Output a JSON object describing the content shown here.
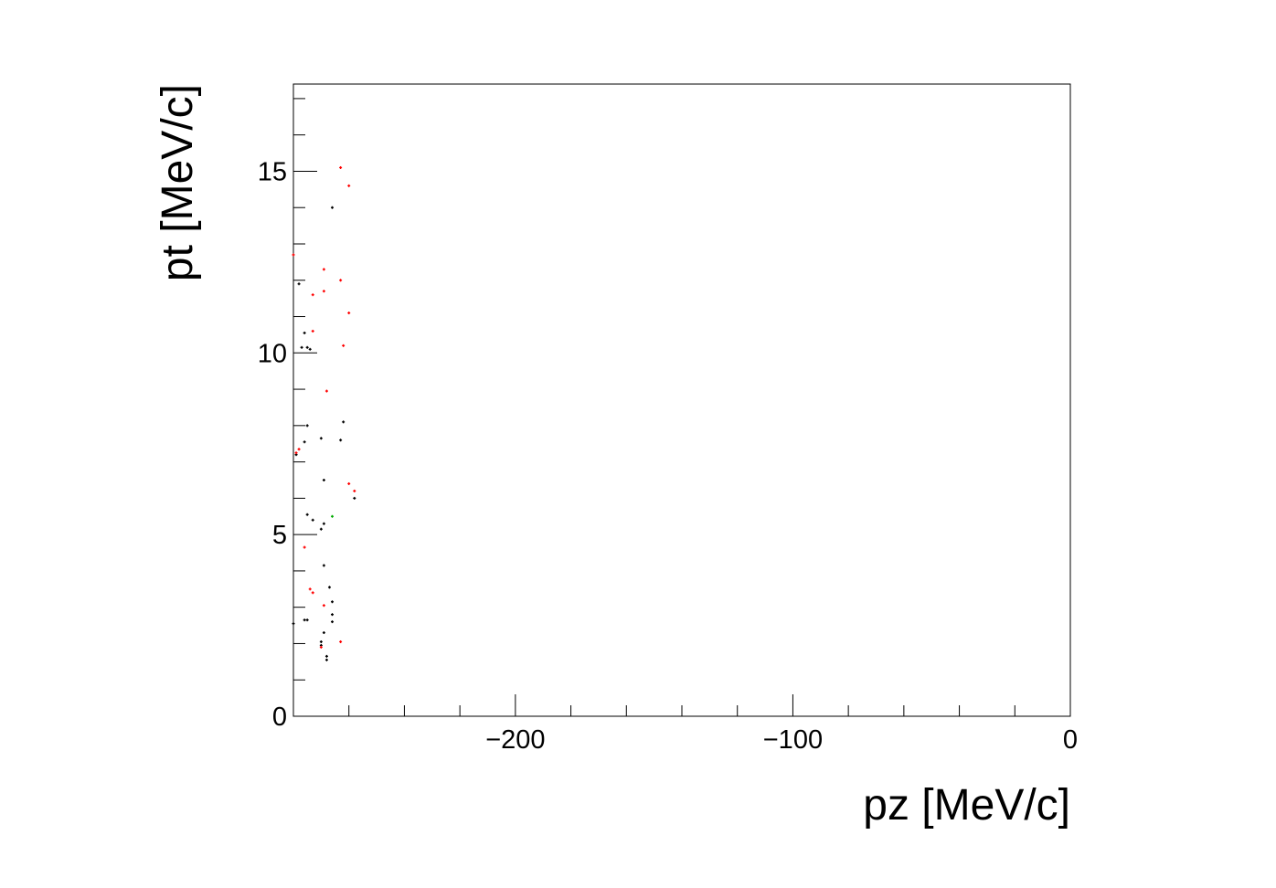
{
  "chart_data": {
    "type": "scatter",
    "xlabel": "pz [MeV/c]",
    "ylabel": "pt [MeV/c]",
    "xlim": [
      -280,
      0
    ],
    "ylim": [
      0,
      17.4
    ],
    "x_ticks": [
      -200,
      -100,
      0
    ],
    "x_tick_labels": [
      "−200",
      "−100",
      "0"
    ],
    "y_ticks": [
      0,
      5,
      10,
      15
    ],
    "y_tick_labels": [
      "0",
      "5",
      "10",
      "15"
    ],
    "grid": false,
    "series": [
      {
        "color": "#000000",
        "points": [
          [
            -266,
            14.0
          ],
          [
            -278,
            11.9
          ],
          [
            -276,
            10.55
          ],
          [
            -277,
            10.15
          ],
          [
            -275,
            10.15
          ],
          [
            -274,
            10.1
          ],
          [
            -275,
            8.0
          ],
          [
            -276,
            7.55
          ],
          [
            -279,
            7.2
          ],
          [
            -262,
            8.1
          ],
          [
            -270,
            7.65
          ],
          [
            -263,
            7.6
          ],
          [
            -269,
            6.5
          ],
          [
            -258,
            6.0
          ],
          [
            -275,
            5.55
          ],
          [
            -273,
            5.4
          ],
          [
            -269,
            5.3
          ],
          [
            -270,
            5.15
          ],
          [
            -269,
            4.15
          ],
          [
            -267,
            3.55
          ],
          [
            -266,
            3.15
          ],
          [
            -276,
            2.65
          ],
          [
            -275,
            2.65
          ],
          [
            -266,
            2.8
          ],
          [
            -266,
            2.6
          ],
          [
            -280,
            2.55
          ],
          [
            -269,
            2.3
          ],
          [
            -270,
            2.05
          ],
          [
            -270,
            1.95
          ],
          [
            -268,
            1.65
          ],
          [
            -268,
            1.55
          ]
        ]
      },
      {
        "color": "#ff0000",
        "points": [
          [
            -263,
            15.1
          ],
          [
            -260,
            14.6
          ],
          [
            -280,
            12.7
          ],
          [
            -269,
            12.3
          ],
          [
            -263,
            12.0
          ],
          [
            -273,
            11.6
          ],
          [
            -269,
            11.7
          ],
          [
            -260,
            11.1
          ],
          [
            -273,
            10.6
          ],
          [
            -262,
            10.2
          ],
          [
            -268,
            8.95
          ],
          [
            -278,
            7.35
          ],
          [
            -279,
            7.25
          ],
          [
            -260,
            6.4
          ],
          [
            -258,
            6.2
          ],
          [
            -276,
            4.65
          ],
          [
            -274,
            3.5
          ],
          [
            -273,
            3.4
          ],
          [
            -269,
            3.05
          ],
          [
            -263,
            2.05
          ],
          [
            -270,
            1.9
          ]
        ]
      },
      {
        "color": "#00aa00",
        "points": [
          [
            -266,
            5.5
          ]
        ]
      }
    ]
  }
}
